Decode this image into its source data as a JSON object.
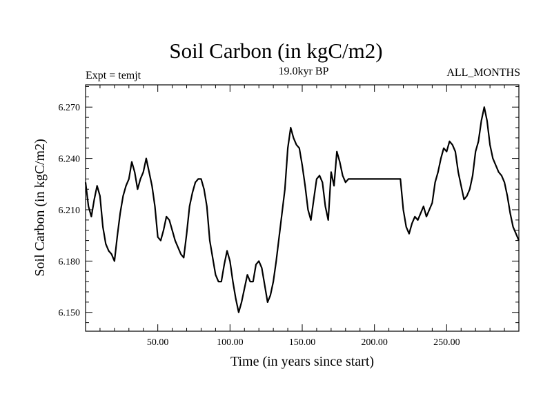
{
  "chart_data": {
    "type": "line",
    "title": "Soil Carbon (in kgC/m2)",
    "subtitle": "19.0kyr BP",
    "left_label": "Expt = temjt",
    "right_label": "ALL_MONTHS",
    "xlabel": "Time (in years since start)",
    "ylabel": "Soil Carbon (in kgC/m2)",
    "xlim": [
      0,
      300
    ],
    "ylim": [
      6.139,
      6.283
    ],
    "xticks": [
      50,
      100,
      150,
      200,
      250
    ],
    "xtick_labels": [
      "50.00",
      "100.00",
      "150.00",
      "200.00",
      "250.00"
    ],
    "yticks": [
      6.15,
      6.18,
      6.21,
      6.24,
      6.27
    ],
    "ytick_labels": [
      "6.150",
      "6.180",
      "6.210",
      "6.240",
      "6.270"
    ],
    "series": [
      {
        "name": "Soil Carbon",
        "color": "#000000",
        "x": [
          0,
          2,
          4,
          6,
          8,
          10,
          12,
          14,
          16,
          18,
          20,
          22,
          24,
          26,
          28,
          30,
          32,
          34,
          36,
          38,
          40,
          42,
          44,
          46,
          48,
          50,
          52,
          54,
          56,
          58,
          60,
          62,
          64,
          66,
          68,
          70,
          72,
          74,
          76,
          78,
          80,
          82,
          84,
          86,
          88,
          90,
          92,
          94,
          96,
          98,
          100,
          102,
          104,
          106,
          108,
          110,
          112,
          114,
          116,
          118,
          120,
          122,
          124,
          126,
          128,
          130,
          132,
          134,
          136,
          138,
          140,
          142,
          144,
          146,
          148,
          150,
          152,
          154,
          156,
          158,
          160,
          162,
          164,
          166,
          168,
          170,
          172,
          174,
          176,
          178,
          180,
          182,
          184,
          186,
          188,
          190,
          192,
          194,
          196,
          198,
          200,
          202,
          204,
          206,
          208,
          210,
          212,
          214,
          216,
          218,
          220,
          222,
          224,
          226,
          228,
          230,
          232,
          234,
          236,
          238,
          240,
          242,
          244,
          246,
          248,
          250,
          252,
          254,
          256,
          258,
          260,
          262,
          264,
          266,
          268,
          270,
          272,
          274,
          276,
          278,
          280,
          282,
          284,
          286,
          288,
          290,
          292,
          294,
          296,
          298,
          300
        ],
        "values": [
          6.226,
          6.212,
          6.206,
          6.216,
          6.224,
          6.218,
          6.2,
          6.19,
          6.186,
          6.184,
          6.18,
          6.195,
          6.208,
          6.218,
          6.224,
          6.228,
          6.238,
          6.232,
          6.222,
          6.228,
          6.232,
          6.24,
          6.232,
          6.224,
          6.212,
          6.194,
          6.192,
          6.198,
          6.206,
          6.204,
          6.198,
          6.192,
          6.188,
          6.184,
          6.182,
          6.196,
          6.212,
          6.22,
          6.226,
          6.228,
          6.228,
          6.222,
          6.212,
          6.192,
          6.182,
          6.172,
          6.168,
          6.168,
          6.178,
          6.186,
          6.18,
          6.168,
          6.158,
          6.15,
          6.156,
          6.164,
          6.172,
          6.168,
          6.168,
          6.178,
          6.18,
          6.176,
          6.166,
          6.156,
          6.16,
          6.168,
          6.18,
          6.194,
          6.208,
          6.222,
          6.246,
          6.258,
          6.252,
          6.248,
          6.246,
          6.236,
          6.224,
          6.21,
          6.204,
          6.216,
          6.228,
          6.23,
          6.226,
          6.212,
          6.204,
          6.232,
          6.224,
          6.244,
          6.238,
          6.23,
          6.226,
          6.228,
          6.228,
          6.228,
          6.228,
          6.228,
          6.228,
          6.228,
          6.228,
          6.228,
          6.228,
          6.228,
          6.228,
          6.228,
          6.228,
          6.228,
          6.228,
          6.228,
          6.228,
          6.228,
          6.21,
          6.2,
          6.196,
          6.202,
          6.206,
          6.204,
          6.208,
          6.212,
          6.206,
          6.21,
          6.214,
          6.226,
          6.232,
          6.24,
          6.246,
          6.244,
          6.25,
          6.248,
          6.244,
          6.232,
          6.224,
          6.216,
          6.218,
          6.222,
          6.23,
          6.244,
          6.25,
          6.262,
          6.27,
          6.262,
          6.248,
          6.24,
          6.236,
          6.232,
          6.23,
          6.226,
          6.218,
          6.208,
          6.2,
          6.196,
          6.192
        ]
      }
    ]
  }
}
